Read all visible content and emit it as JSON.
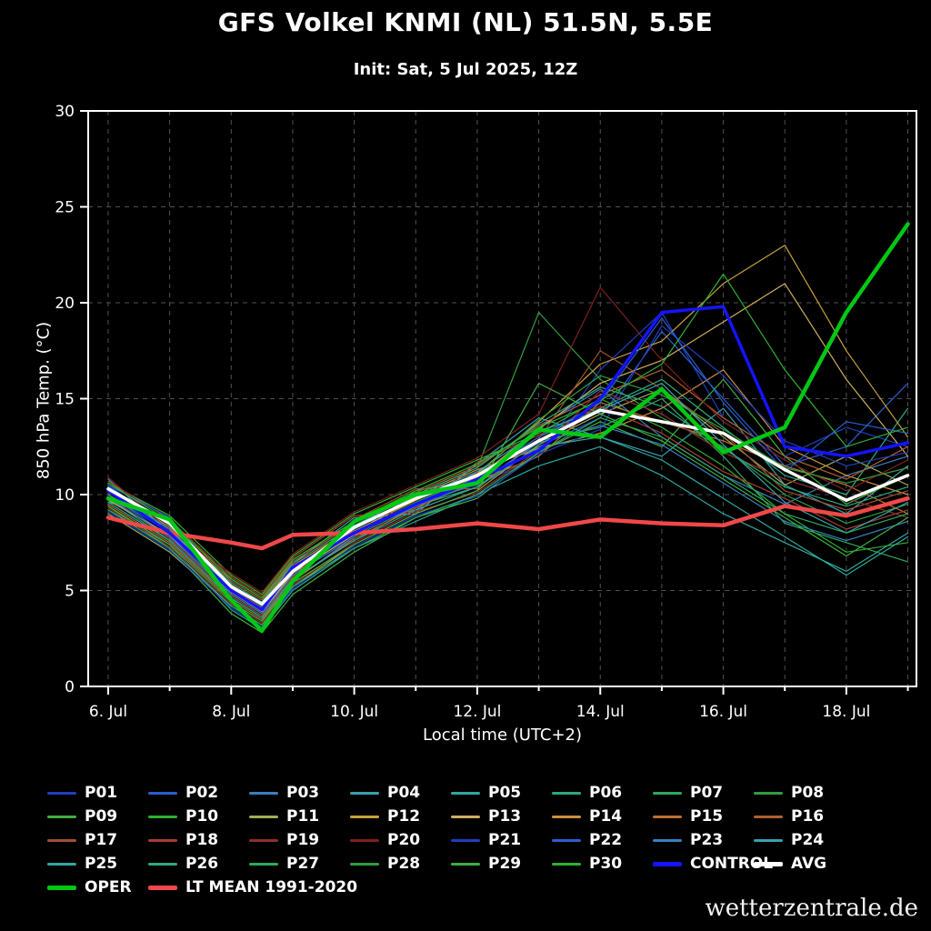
{
  "header": {
    "title": "GFS Volkel KNMI (NL) 51.5N, 5.5E",
    "subtitle": "Init: Sat, 5 Jul 2025, 12Z"
  },
  "axes": {
    "y_label": "850 hPa Temp. (°C)",
    "x_label": "Local time (UTC+2)",
    "y_ticks": [
      0,
      5,
      10,
      15,
      20,
      25,
      30
    ],
    "x_ticks": [
      {
        "day": 6,
        "label": "6. Jul"
      },
      {
        "day": 8,
        "label": "8. Jul"
      },
      {
        "day": 10,
        "label": "10. Jul"
      },
      {
        "day": 12,
        "label": "12. Jul"
      },
      {
        "day": 14,
        "label": "14. Jul"
      },
      {
        "day": 16,
        "label": "16. Jul"
      },
      {
        "day": 18,
        "label": "18. Jul"
      }
    ],
    "x_range": [
      5.675,
      19.14
    ]
  },
  "watermark": "wetterzentrale.de",
  "colors": {
    "background": "#000000",
    "grid": "#50505c",
    "axis": "#ffffff",
    "oper": "#00c814",
    "control": "#1414ff",
    "avg": "#ffffff",
    "lt_mean": "#f04848"
  },
  "chart_data": {
    "type": "line",
    "title": "GFS Volkel KNMI (NL) 51.5N, 5.5E",
    "subtitle": "Init: Sat, 5 Jul 2025, 12Z",
    "xlabel": "Local time (UTC+2)",
    "ylabel": "850 hPa Temp. (°C)",
    "ylim": [
      0,
      30
    ],
    "grid": true,
    "legend_position": "bottom",
    "x_unit": "day of July 2025 (local time UTC+2)",
    "x": [
      6,
      7,
      8,
      8.5,
      9,
      10,
      11,
      12,
      13,
      14,
      15,
      16,
      17,
      18,
      19
    ],
    "series": [
      {
        "name": "P01",
        "color": "#1f3fbf",
        "width": 1.2,
        "values": [
          10.5,
          8.2,
          4.8,
          3.8,
          5.8,
          8.0,
          9.6,
          10.5,
          12.0,
          16.5,
          19.5,
          14.0,
          12.0,
          13.5,
          12.5
        ]
      },
      {
        "name": "P02",
        "color": "#2a5fd0",
        "width": 1.2,
        "values": [
          10.0,
          7.8,
          5.2,
          4.2,
          6.0,
          8.4,
          9.2,
          11.2,
          12.5,
          14.0,
          18.5,
          15.0,
          11.5,
          12.5,
          15.8
        ]
      },
      {
        "name": "P03",
        "color": "#3a7fc0",
        "width": 1.2,
        "values": [
          9.6,
          8.8,
          4.4,
          3.4,
          5.5,
          7.8,
          10.2,
          10.8,
          13.5,
          15.5,
          13.0,
          11.0,
          9.5,
          11.0,
          12.0
        ]
      },
      {
        "name": "P04",
        "color": "#3a9fb0",
        "width": 1.2,
        "values": [
          10.8,
          8.0,
          5.6,
          4.6,
          6.4,
          8.8,
          9.0,
          11.6,
          14.0,
          13.0,
          12.0,
          14.5,
          10.5,
          9.0,
          11.5
        ]
      },
      {
        "name": "P05",
        "color": "#2fa89f",
        "width": 1.2,
        "values": [
          9.2,
          7.4,
          4.0,
          3.0,
          5.0,
          7.2,
          8.6,
          10.0,
          11.5,
          12.5,
          11.0,
          9.0,
          7.5,
          6.0,
          8.0
        ]
      },
      {
        "name": "P06",
        "color": "#2fa87f",
        "width": 1.2,
        "values": [
          10.2,
          8.6,
          5.0,
          4.0,
          6.2,
          8.2,
          9.8,
          11.0,
          13.0,
          14.5,
          16.0,
          13.5,
          11.0,
          10.0,
          14.5
        ]
      },
      {
        "name": "P07",
        "color": "#2fa85f",
        "width": 1.2,
        "values": [
          9.8,
          7.6,
          4.6,
          3.6,
          5.6,
          7.6,
          9.4,
          10.4,
          12.8,
          13.5,
          15.0,
          12.0,
          8.5,
          7.5,
          6.5
        ]
      },
      {
        "name": "P08",
        "color": "#2f9f3f",
        "width": 1.2,
        "values": [
          10.4,
          8.4,
          5.4,
          4.4,
          6.6,
          8.6,
          10.0,
          11.4,
          19.5,
          16.0,
          14.0,
          12.5,
          10.0,
          8.5,
          9.5
        ]
      },
      {
        "name": "P09",
        "color": "#3fae3f",
        "width": 1.2,
        "values": [
          9.4,
          7.2,
          3.8,
          2.8,
          4.8,
          7.0,
          8.8,
          9.8,
          12.2,
          13.8,
          12.5,
          16.0,
          12.0,
          9.5,
          11.0
        ]
      },
      {
        "name": "P10",
        "color": "#30b030",
        "width": 1.2,
        "values": [
          10.6,
          8.9,
          5.8,
          4.8,
          6.8,
          9.0,
          10.4,
          11.8,
          13.2,
          15.0,
          13.5,
          11.5,
          9.0,
          7.0,
          7.5
        ]
      },
      {
        "name": "P11",
        "color": "#9fae4f",
        "width": 1.2,
        "values": [
          9.0,
          7.0,
          4.2,
          3.2,
          5.2,
          7.4,
          9.0,
          10.2,
          12.6,
          14.2,
          15.5,
          13.0,
          10.5,
          12.0,
          10.5
        ]
      },
      {
        "name": "P12",
        "color": "#c8a03f",
        "width": 1.2,
        "values": [
          10.0,
          8.1,
          5.1,
          4.1,
          6.1,
          8.1,
          9.7,
          11.1,
          13.8,
          16.8,
          18.0,
          21.0,
          23.0,
          17.5,
          13.0
        ]
      },
      {
        "name": "P13",
        "color": "#cfae5f",
        "width": 1.2,
        "values": [
          9.7,
          7.9,
          4.9,
          3.9,
          5.9,
          7.9,
          9.5,
          10.9,
          13.4,
          15.8,
          17.0,
          19.0,
          21.0,
          16.0,
          12.0
        ]
      },
      {
        "name": "P14",
        "color": "#cf8f3f",
        "width": 1.2,
        "values": [
          10.3,
          8.3,
          5.3,
          4.3,
          6.3,
          8.3,
          9.9,
          11.3,
          12.4,
          13.2,
          14.5,
          16.5,
          12.5,
          11.0,
          10.0
        ]
      },
      {
        "name": "P15",
        "color": "#bf6f2f",
        "width": 1.2,
        "values": [
          9.5,
          7.5,
          4.5,
          3.5,
          5.5,
          7.7,
          9.3,
          10.7,
          12.0,
          14.8,
          13.8,
          12.8,
          11.5,
          10.5,
          9.0
        ]
      },
      {
        "name": "P16",
        "color": "#af5f2f",
        "width": 1.2,
        "values": [
          10.1,
          8.5,
          5.5,
          4.5,
          6.5,
          8.5,
          10.1,
          11.5,
          13.6,
          15.2,
          16.5,
          14.0,
          12.0,
          10.8,
          12.5
        ]
      },
      {
        "name": "P17",
        "color": "#a0502f",
        "width": 1.2,
        "values": [
          9.9,
          7.7,
          4.7,
          3.7,
          5.7,
          8.7,
          10.3,
          10.3,
          12.9,
          17.5,
          15.5,
          13.2,
          10.2,
          9.2,
          10.2
        ]
      },
      {
        "name": "P18",
        "color": "#a53f2f",
        "width": 1.2,
        "values": [
          10.7,
          8.7,
          5.7,
          4.7,
          6.7,
          8.9,
          9.1,
          11.7,
          13.1,
          14.6,
          13.2,
          11.2,
          9.8,
          8.2,
          9.2
        ]
      },
      {
        "name": "P19",
        "color": "#8f2f2f",
        "width": 1.2,
        "values": [
          9.3,
          7.3,
          4.3,
          3.3,
          5.3,
          7.5,
          9.1,
          10.1,
          12.3,
          15.4,
          14.2,
          12.2,
          10.8,
          9.8,
          8.8
        ]
      },
      {
        "name": "P20",
        "color": "#7f1f1f",
        "width": 1.2,
        "values": [
          10.9,
          8.1,
          5.9,
          4.9,
          6.9,
          9.1,
          10.5,
          11.9,
          14.2,
          20.8,
          17.0,
          13.8,
          11.8,
          10.2,
          11.8
        ]
      },
      {
        "name": "P21",
        "color": "#1f3fbf",
        "width": 1.2,
        "values": [
          9.1,
          7.1,
          4.1,
          3.1,
          5.1,
          7.3,
          8.9,
          9.9,
          12.1,
          13.4,
          18.8,
          16.2,
          12.8,
          11.5,
          12.2
        ]
      },
      {
        "name": "P22",
        "color": "#2a5fd0",
        "width": 1.2,
        "values": [
          10.5,
          8.8,
          5.0,
          4.0,
          6.0,
          8.0,
          9.6,
          11.0,
          13.0,
          14.8,
          19.2,
          14.8,
          11.2,
          13.8,
          13.2
        ]
      },
      {
        "name": "P23",
        "color": "#3a7fc0",
        "width": 1.2,
        "values": [
          9.8,
          7.8,
          4.8,
          3.8,
          5.8,
          7.8,
          9.4,
          10.6,
          12.7,
          13.6,
          12.6,
          10.6,
          8.6,
          7.6,
          8.6
        ]
      },
      {
        "name": "P24",
        "color": "#3a9fb0",
        "width": 1.2,
        "values": [
          10.2,
          8.2,
          5.2,
          4.2,
          6.2,
          8.2,
          9.8,
          11.2,
          13.3,
          14.4,
          15.8,
          12.6,
          9.6,
          8.0,
          9.6
        ]
      },
      {
        "name": "P25",
        "color": "#2fa89f",
        "width": 1.2,
        "values": [
          9.6,
          7.6,
          4.6,
          3.6,
          5.6,
          7.6,
          9.2,
          10.4,
          12.5,
          13.0,
          11.8,
          9.8,
          7.8,
          5.8,
          7.8
        ]
      },
      {
        "name": "P26",
        "color": "#2fa87f",
        "width": 1.2,
        "values": [
          10.4,
          8.4,
          5.4,
          4.4,
          6.4,
          8.4,
          10.0,
          11.4,
          13.7,
          15.6,
          14.6,
          12.4,
          10.4,
          9.4,
          10.4
        ]
      },
      {
        "name": "P27",
        "color": "#2fa85f",
        "width": 1.2,
        "values": [
          9.2,
          7.2,
          4.2,
          3.2,
          5.2,
          7.2,
          8.8,
          10.0,
          12.2,
          14.0,
          13.0,
          11.0,
          9.0,
          8.0,
          9.0
        ]
      },
      {
        "name": "P28",
        "color": "#2f9f3f",
        "width": 1.2,
        "values": [
          10.0,
          8.0,
          5.0,
          4.0,
          6.0,
          8.0,
          9.6,
          11.0,
          13.9,
          16.2,
          15.2,
          13.4,
          11.4,
          10.6,
          11.4
        ]
      },
      {
        "name": "P29",
        "color": "#3fae3f",
        "width": 1.2,
        "values": [
          9.4,
          7.4,
          4.4,
          3.4,
          5.4,
          7.4,
          9.0,
          10.2,
          15.8,
          14.2,
          12.8,
          10.8,
          8.8,
          6.8,
          8.8
        ]
      },
      {
        "name": "P30",
        "color": "#30b030",
        "width": 1.2,
        "values": [
          10.6,
          8.6,
          5.6,
          4.6,
          6.6,
          8.6,
          10.2,
          11.6,
          13.5,
          14.9,
          16.8,
          21.5,
          16.5,
          12.5,
          13.5
        ]
      },
      {
        "name": "CONTROL",
        "color": "#1414ff",
        "width": 3.5,
        "values": [
          10.2,
          8.0,
          5.0,
          4.0,
          6.2,
          8.0,
          9.5,
          10.8,
          12.3,
          15.0,
          19.5,
          19.8,
          12.5,
          12.0,
          12.7
        ]
      },
      {
        "name": "AVG",
        "color": "#ffffff",
        "width": 3.5,
        "values": [
          10.3,
          8.5,
          5.2,
          4.3,
          6.0,
          8.3,
          9.8,
          11.0,
          12.8,
          14.4,
          13.8,
          13.2,
          11.3,
          9.7,
          11.0
        ]
      },
      {
        "name": "OPER",
        "color": "#00c814",
        "width": 4.5,
        "values": [
          9.8,
          8.7,
          4.5,
          2.9,
          5.5,
          8.6,
          10.0,
          10.6,
          13.4,
          13.0,
          15.5,
          12.2,
          13.5,
          19.5,
          24.1
        ]
      },
      {
        "name": "LT MEAN 1991-2020",
        "color": "#f04848",
        "width": 4.5,
        "values": [
          8.8,
          8.0,
          7.5,
          7.2,
          7.9,
          8.0,
          8.2,
          8.5,
          8.2,
          8.7,
          8.5,
          8.4,
          9.4,
          8.9,
          9.8
        ]
      }
    ]
  }
}
